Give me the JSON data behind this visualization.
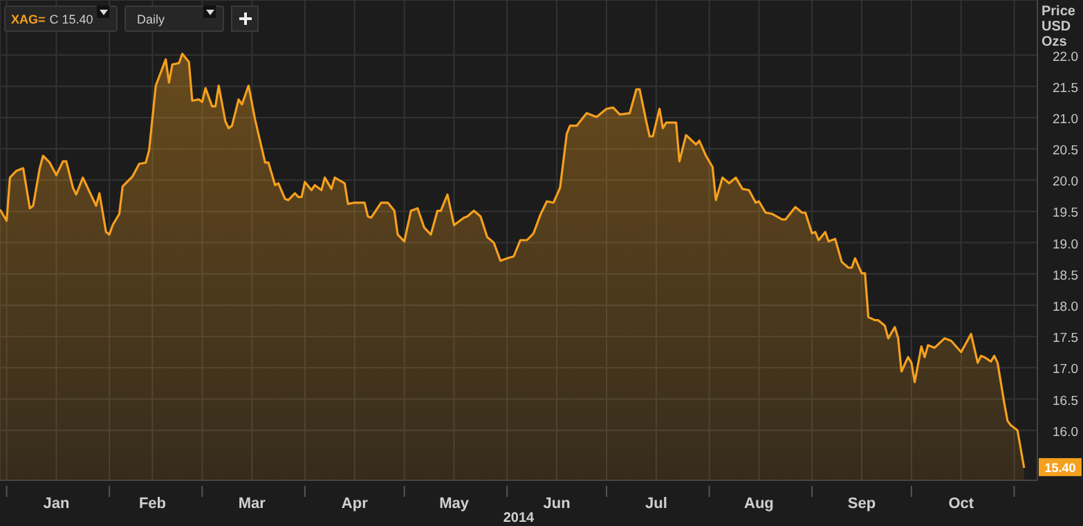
{
  "chart_data": {
    "type": "area",
    "ylabel": "Price USD Ozs",
    "xlabel": "2014",
    "annotations": [
      "XAG=",
      "C 15.40",
      "Daily",
      {
        "text": "15.40",
        "x": "2014-11-04",
        "y": 15.4
      }
    ],
    "xlim": [
      "2013-12-30",
      "2014-11-08"
    ],
    "xticks": [
      {
        "value": "2014-01-01",
        "label": null
      },
      {
        "value": "2014-01-16",
        "label": "Jan"
      },
      {
        "value": "2014-02-01",
        "label": null
      },
      {
        "value": "2014-02-14",
        "label": "Feb"
      },
      {
        "value": "2014-03-01",
        "label": null
      },
      {
        "value": "2014-03-16",
        "label": "Mar"
      },
      {
        "value": "2014-04-01",
        "label": null
      },
      {
        "value": "2014-04-16",
        "label": "Apr"
      },
      {
        "value": "2014-05-01",
        "label": null
      },
      {
        "value": "2014-05-16",
        "label": "May"
      },
      {
        "value": "2014-06-01",
        "label": null
      },
      {
        "value": "2014-06-16",
        "label": "Jun"
      },
      {
        "value": "2014-07-01",
        "label": null
      },
      {
        "value": "2014-07-16",
        "label": "Jul"
      },
      {
        "value": "2014-08-01",
        "label": null
      },
      {
        "value": "2014-08-16",
        "label": "Aug"
      },
      {
        "value": "2014-09-01",
        "label": null
      },
      {
        "value": "2014-09-16",
        "label": "Sep"
      },
      {
        "value": "2014-10-01",
        "label": null
      },
      {
        "value": "2014-10-16",
        "label": "Oct"
      },
      {
        "value": "2014-11-01",
        "label": null
      }
    ],
    "ylim": [
      15.2,
      22.88
    ],
    "yticks": [
      {
        "value": 16,
        "label": "16.0"
      },
      {
        "value": 16.5,
        "label": "16.5"
      },
      {
        "value": 17,
        "label": "17.0"
      },
      {
        "value": 17.5,
        "label": "17.5"
      },
      {
        "value": 18,
        "label": "18.0"
      },
      {
        "value": 18.5,
        "label": "18.5"
      },
      {
        "value": 19,
        "label": "19.0"
      },
      {
        "value": 19.5,
        "label": "19.5"
      },
      {
        "value": 20,
        "label": "20.0"
      },
      {
        "value": 20.5,
        "label": "20.5"
      },
      {
        "value": 21,
        "label": "21.0"
      },
      {
        "value": 21.5,
        "label": "21.5"
      },
      {
        "value": 22,
        "label": "22.0"
      }
    ],
    "grid": true,
    "legend": false,
    "marker": "none",
    "line_style": "solid",
    "x": [
      "2013-12-30",
      "2014-01-01",
      "2014-01-02",
      "2014-01-04",
      "2014-01-06",
      "2014-01-08",
      "2014-01-09",
      "2014-01-11",
      "2014-01-12",
      "2014-01-14",
      "2014-01-16",
      "2014-01-18",
      "2014-01-19",
      "2014-01-21",
      "2014-01-22",
      "2014-01-24",
      "2014-01-28",
      "2014-01-29",
      "2014-01-31",
      "2014-02-01",
      "2014-02-02",
      "2014-02-04",
      "2014-02-05",
      "2014-02-08",
      "2014-02-10",
      "2014-02-12",
      "2014-02-13",
      "2014-02-15",
      "2014-02-18",
      "2014-02-19",
      "2014-02-20",
      "2014-02-22",
      "2014-02-23",
      "2014-02-25",
      "2014-02-26",
      "2014-02-28",
      "2014-03-01",
      "2014-03-02",
      "2014-03-04",
      "2014-03-05",
      "2014-03-06",
      "2014-03-08",
      "2014-03-09",
      "2014-03-10",
      "2014-03-12",
      "2014-03-13",
      "2014-03-15",
      "2014-03-17",
      "2014-03-20",
      "2014-03-21",
      "2014-03-23",
      "2014-03-24",
      "2014-03-26",
      "2014-03-27",
      "2014-03-29",
      "2014-03-30",
      "2014-03-31",
      "2014-04-01",
      "2014-04-03",
      "2014-04-04",
      "2014-04-06",
      "2014-04-07",
      "2014-04-09",
      "2014-04-10",
      "2014-04-13",
      "2014-04-14",
      "2014-04-16",
      "2014-04-19",
      "2014-04-20",
      "2014-04-21",
      "2014-04-24",
      "2014-04-26",
      "2014-04-28",
      "2014-04-29",
      "2014-05-01",
      "2014-05-03",
      "2014-05-05",
      "2014-05-07",
      "2014-05-09",
      "2014-05-11",
      "2014-05-12",
      "2014-05-14",
      "2014-05-16",
      "2014-05-19",
      "2014-05-20",
      "2014-05-22",
      "2014-05-24",
      "2014-05-26",
      "2014-05-28",
      "2014-05-30",
      "2014-06-01",
      "2014-06-03",
      "2014-06-05",
      "2014-06-07",
      "2014-06-09",
      "2014-06-11",
      "2014-06-13",
      "2014-06-15",
      "2014-06-17",
      "2014-06-19",
      "2014-06-20",
      "2014-06-22",
      "2014-06-25",
      "2014-06-28",
      "2014-07-01",
      "2014-07-03",
      "2014-07-05",
      "2014-07-08",
      "2014-07-10",
      "2014-07-11",
      "2014-07-13",
      "2014-07-14",
      "2014-07-15",
      "2014-07-17",
      "2014-07-18",
      "2014-07-19",
      "2014-07-22",
      "2014-07-23",
      "2014-07-25",
      "2014-07-28",
      "2014-07-29",
      "2014-07-31",
      "2014-08-02",
      "2014-08-03",
      "2014-08-05",
      "2014-08-07",
      "2014-08-09",
      "2014-08-11",
      "2014-08-13",
      "2014-08-15",
      "2014-08-16",
      "2014-08-18",
      "2014-08-20",
      "2014-08-23",
      "2014-08-24",
      "2014-08-27",
      "2014-08-29",
      "2014-08-30",
      "2014-09-01",
      "2014-09-02",
      "2014-09-03",
      "2014-09-05",
      "2014-09-06",
      "2014-09-08",
      "2014-09-10",
      "2014-09-12",
      "2014-09-13",
      "2014-09-14",
      "2014-09-16",
      "2014-09-17",
      "2014-09-18",
      "2014-09-20",
      "2014-09-21",
      "2014-09-23",
      "2014-09-24",
      "2014-09-26",
      "2014-09-27",
      "2014-09-28",
      "2014-09-30",
      "2014-10-01",
      "2014-10-02",
      "2014-10-04",
      "2014-10-05",
      "2014-10-06",
      "2014-10-08",
      "2014-10-11",
      "2014-10-13",
      "2014-10-16",
      "2014-10-19",
      "2014-10-21",
      "2014-10-22",
      "2014-10-23",
      "2014-10-25",
      "2014-10-26",
      "2014-10-27",
      "2014-10-29",
      "2014-10-30",
      "2014-10-31",
      "2014-11-02",
      "2014-11-04"
    ],
    "series": [
      {
        "color": "#f5a01e",
        "values": [
          19.53,
          19.35,
          20.04,
          20.15,
          20.19,
          19.55,
          19.59,
          20.19,
          20.39,
          20.28,
          20.08,
          20.3,
          20.3,
          19.88,
          19.77,
          20.04,
          19.59,
          19.79,
          19.17,
          19.13,
          19.28,
          19.46,
          19.9,
          20.06,
          20.26,
          20.28,
          20.48,
          21.51,
          21.93,
          21.56,
          21.85,
          21.87,
          22.02,
          21.89,
          21.27,
          21.29,
          21.25,
          21.47,
          21.18,
          21.18,
          21.51,
          20.94,
          20.83,
          20.87,
          21.29,
          21.21,
          21.51,
          20.96,
          20.28,
          20.28,
          19.92,
          19.95,
          19.7,
          19.68,
          19.79,
          19.73,
          19.73,
          19.97,
          19.84,
          19.92,
          19.84,
          20.04,
          19.86,
          20.04,
          19.95,
          19.62,
          19.64,
          19.64,
          19.42,
          19.4,
          19.64,
          19.64,
          19.51,
          19.13,
          19.02,
          19.51,
          19.55,
          19.24,
          19.13,
          19.51,
          19.51,
          19.77,
          19.28,
          19.4,
          19.42,
          19.51,
          19.42,
          19.09,
          19.0,
          18.71,
          18.75,
          18.78,
          19.04,
          19.04,
          19.15,
          19.44,
          19.66,
          19.64,
          19.88,
          20.74,
          20.87,
          20.87,
          21.07,
          21.01,
          21.14,
          21.16,
          21.05,
          21.07,
          21.45,
          21.45,
          20.94,
          20.7,
          20.7,
          21.14,
          20.83,
          20.92,
          20.92,
          20.3,
          20.72,
          20.57,
          20.63,
          20.39,
          20.21,
          19.68,
          20.04,
          19.95,
          20.04,
          19.86,
          19.84,
          19.64,
          19.66,
          19.48,
          19.46,
          19.37,
          19.37,
          19.57,
          19.48,
          19.48,
          19.15,
          19.17,
          19.04,
          19.17,
          19.02,
          19.06,
          18.69,
          18.6,
          18.6,
          18.75,
          18.51,
          18.51,
          17.81,
          17.76,
          17.76,
          17.67,
          17.47,
          17.65,
          17.47,
          16.94,
          17.17,
          17.08,
          16.77,
          17.34,
          17.17,
          17.36,
          17.32,
          17.47,
          17.43,
          17.25,
          17.54,
          17.08,
          17.19,
          17.17,
          17.1,
          17.19,
          17.08,
          16.44,
          16.15,
          16.08,
          16.0,
          15.4
        ]
      }
    ]
  }
}
